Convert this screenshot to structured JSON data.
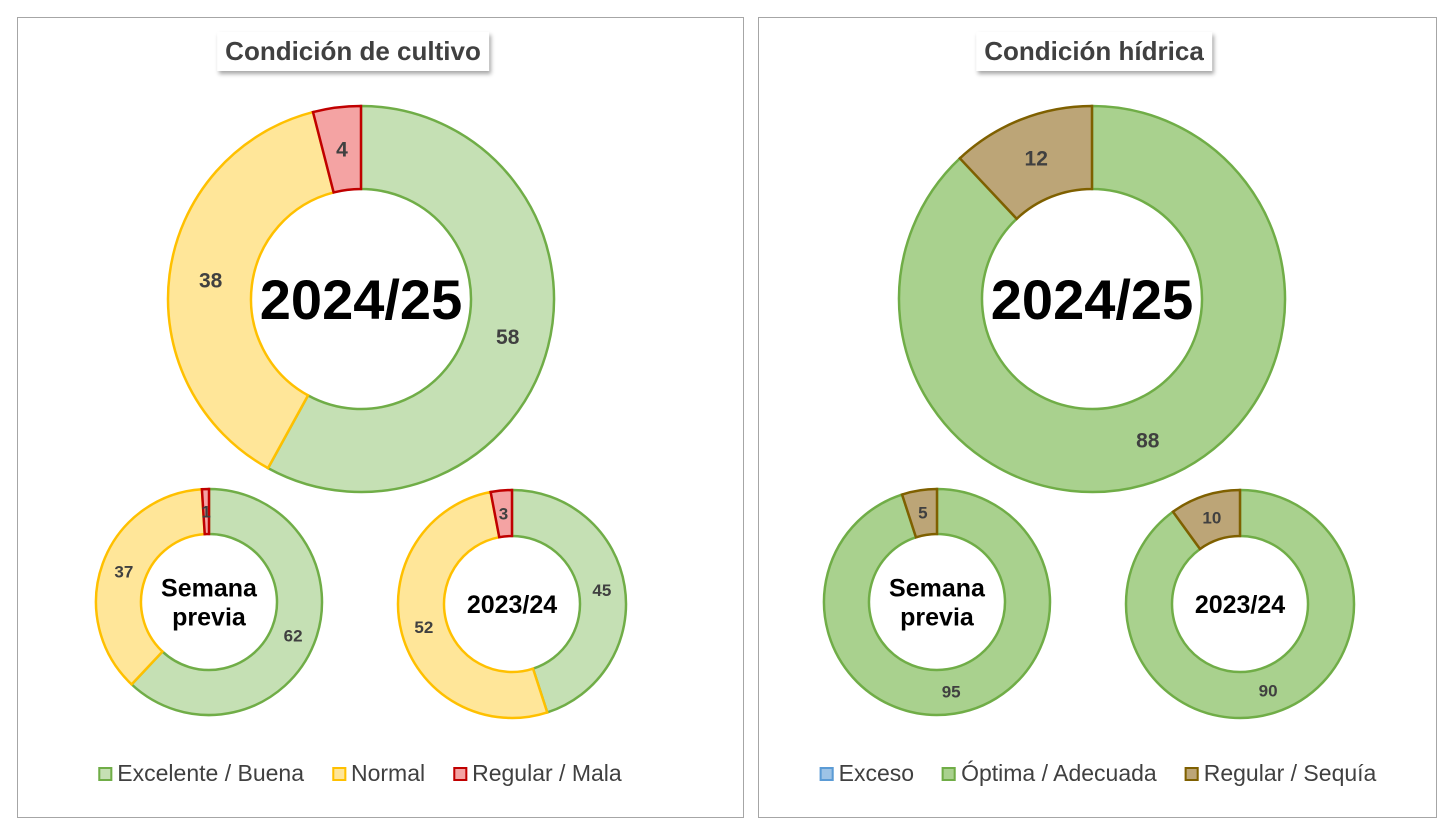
{
  "chart_data": [
    {
      "type": "pie",
      "title": "Condición de cultivo",
      "legend": [
        "Excelente / Buena",
        "Normal",
        "Regular / Mala"
      ],
      "legend_position": "bottom",
      "colors": {
        "fill": [
          "#c5e0b4",
          "#ffe699",
          "#f4a3a3"
        ],
        "stroke": [
          "#70ad47",
          "#ffc000",
          "#c00000"
        ]
      },
      "donuts": [
        {
          "label": "2024/25",
          "values": [
            58,
            38,
            4
          ]
        },
        {
          "label": "Semana previa",
          "values": [
            62,
            37,
            1
          ]
        },
        {
          "label": "2023/24",
          "values": [
            45,
            52,
            3
          ]
        }
      ]
    },
    {
      "type": "pie",
      "title": "Condición hídrica",
      "legend": [
        "Exceso",
        "Óptima / Adecuada",
        "Regular / Sequía"
      ],
      "legend_position": "bottom",
      "colors": {
        "fill": [
          "#9dc3e6",
          "#a9d18e",
          "#bca577"
        ],
        "stroke": [
          "#5b9bd5",
          "#70ad47",
          "#7f6000"
        ]
      },
      "donuts": [
        {
          "label": "2024/25",
          "values": [
            0,
            88,
            12
          ]
        },
        {
          "label": "Semana previa",
          "values": [
            0,
            95,
            5
          ]
        },
        {
          "label": "2023/24",
          "values": [
            0,
            90,
            10
          ]
        }
      ]
    }
  ]
}
